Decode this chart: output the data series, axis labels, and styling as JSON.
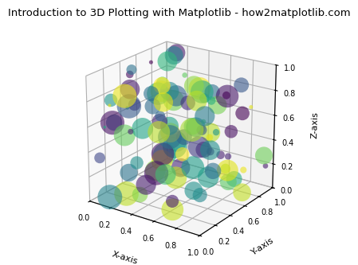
{
  "title": "Introduction to 3D Plotting with Matplotlib - how2matplotlib.com",
  "xlabel": "X-axis",
  "ylabel": "Y-axis",
  "zlabel": "Z-axis",
  "n_points": 100,
  "random_seed": 42,
  "xlim": [
    0.0,
    1.0
  ],
  "ylim": [
    0.0,
    1.0
  ],
  "zlim": [
    0.0,
    1.0
  ],
  "xticks": [
    0.0,
    0.2,
    0.4,
    0.6,
    0.8,
    1.0
  ],
  "yticks": [
    0.0,
    0.2,
    0.4,
    0.6,
    0.8,
    1.0
  ],
  "zticks": [
    0.0,
    0.2,
    0.4,
    0.6,
    0.8,
    1.0
  ],
  "colormap": "viridis",
  "alpha": 0.6,
  "size_scale": 500,
  "title_fontsize": 9.5,
  "axis_label_fontsize": 8,
  "tick_fontsize": 7,
  "elev": 22,
  "azim": -55,
  "background_color": "#ffffff"
}
